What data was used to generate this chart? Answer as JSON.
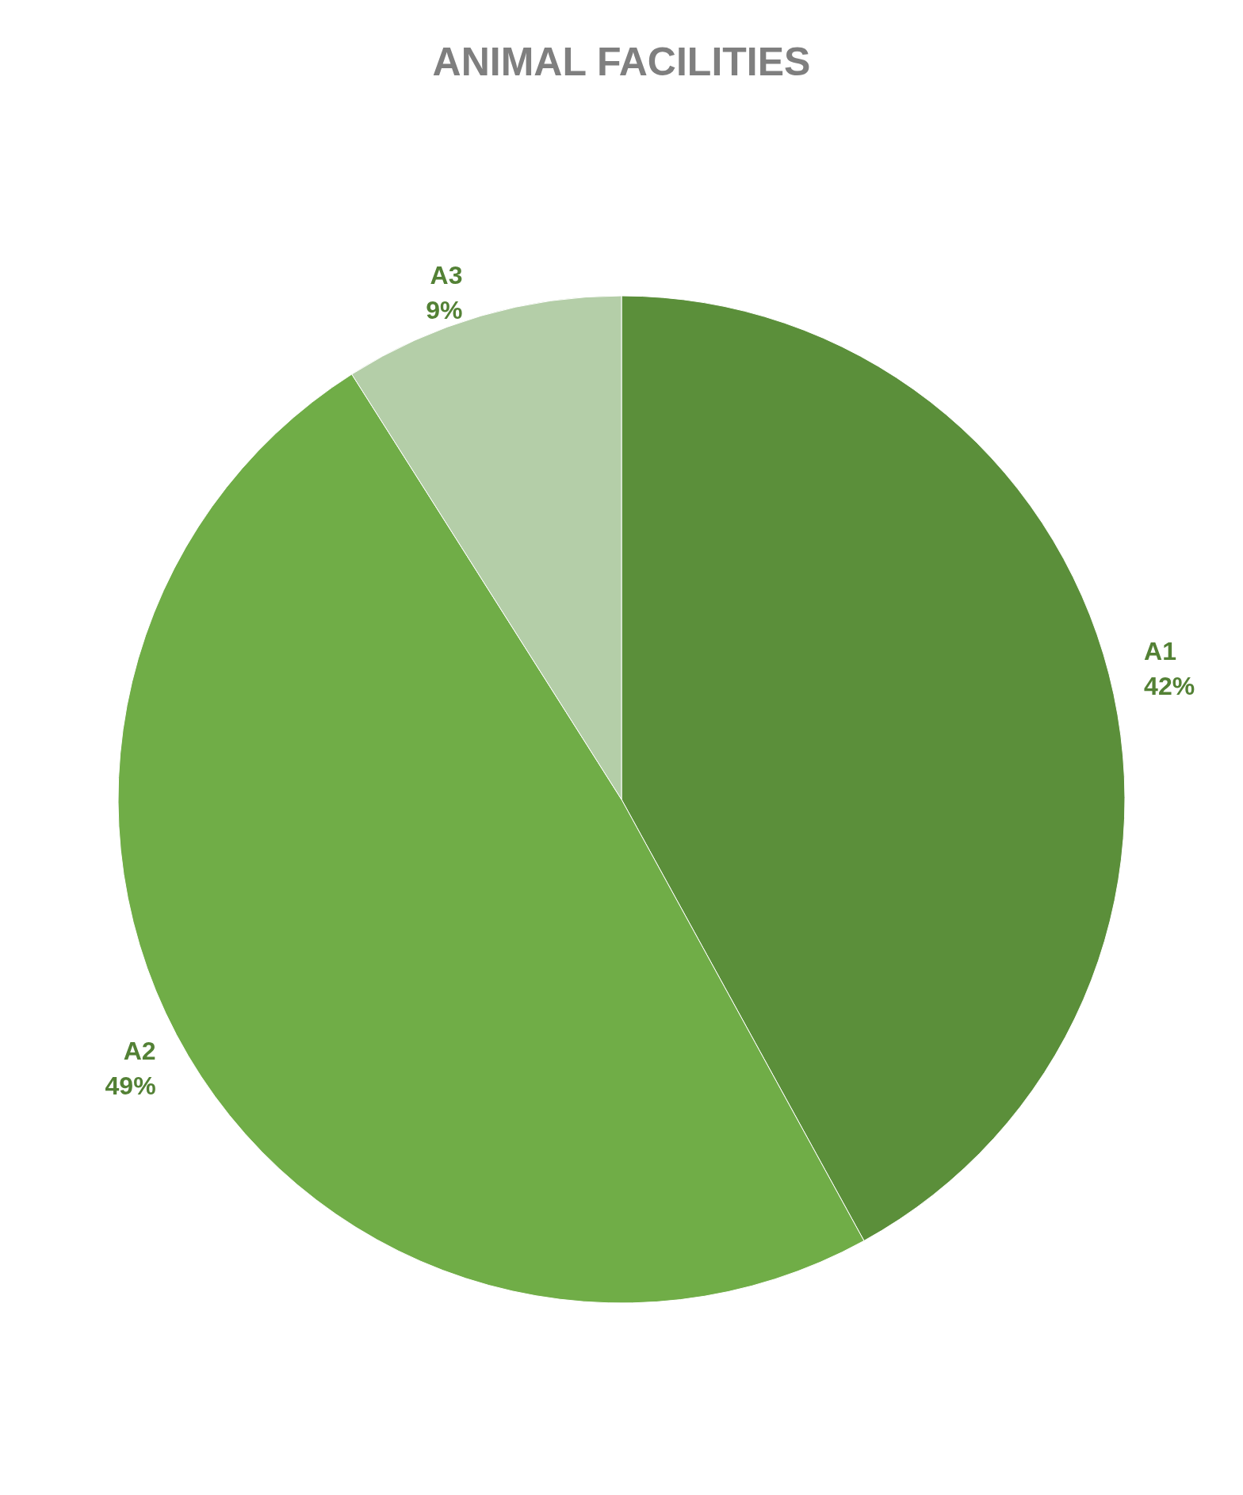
{
  "chart_data": {
    "type": "pie",
    "title": "ANIMAL FACILITIES",
    "categories": [
      "A1",
      "A2",
      "A3"
    ],
    "values": [
      42,
      49,
      9
    ],
    "colors": [
      "#5b8f3a",
      "#70ad47",
      "#b4cea8"
    ],
    "value_labels": [
      "42%",
      "49%",
      "9%"
    ]
  }
}
